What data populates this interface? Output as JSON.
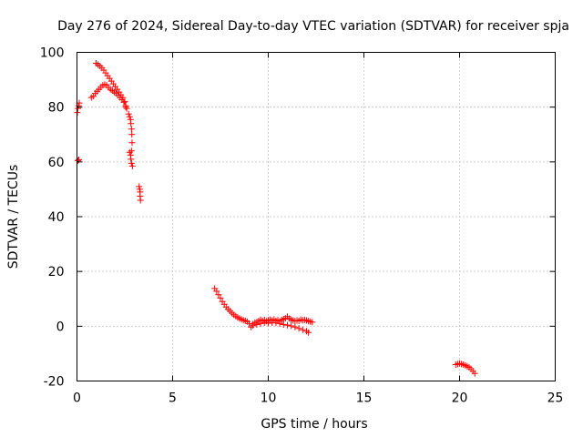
{
  "chart_data": {
    "type": "scatter",
    "title": "Day 276 of 2024, Sidereal Day-to-day VTEC variation (SDTVAR) for receiver spja",
    "xlabel": "GPS time / hours",
    "ylabel": "SDTVAR / TECUs",
    "xlim": [
      0,
      25
    ],
    "ylim": [
      -20,
      100
    ],
    "xticks": [
      0,
      5,
      10,
      15,
      20,
      25
    ],
    "yticks": [
      -20,
      0,
      20,
      40,
      60,
      80,
      100
    ],
    "grid": true,
    "legend": "none",
    "marker": "plus",
    "series": [
      {
        "color": "#ff0000",
        "points": [
          [
            0.02,
            78.0
          ],
          [
            0.05,
            79.5
          ],
          [
            0.08,
            80.5
          ],
          [
            0.12,
            81.5
          ],
          [
            0.05,
            60.5
          ],
          [
            0.1,
            60.8
          ],
          [
            0.75,
            83.5
          ],
          [
            0.85,
            84.0
          ],
          [
            0.95,
            85.0
          ],
          [
            1.05,
            85.8
          ],
          [
            1.15,
            86.5
          ],
          [
            1.25,
            87.3
          ],
          [
            1.35,
            88.0
          ],
          [
            1.45,
            88.3
          ],
          [
            1.55,
            88.0
          ],
          [
            1.65,
            87.2
          ],
          [
            1.75,
            86.5
          ],
          [
            1.85,
            86.0
          ],
          [
            1.95,
            85.5
          ],
          [
            2.05,
            85.0
          ],
          [
            2.15,
            84.3
          ],
          [
            2.25,
            83.5
          ],
          [
            2.35,
            82.7
          ],
          [
            2.45,
            81.8
          ],
          [
            2.55,
            80.5
          ],
          [
            2.6,
            79.5
          ],
          [
            1.0,
            96.0
          ],
          [
            1.1,
            95.5
          ],
          [
            1.2,
            95.0
          ],
          [
            1.3,
            94.3
          ],
          [
            1.4,
            93.5
          ],
          [
            1.5,
            92.5
          ],
          [
            1.6,
            91.5
          ],
          [
            1.7,
            90.5
          ],
          [
            1.8,
            89.5
          ],
          [
            1.9,
            88.5
          ],
          [
            2.0,
            87.5
          ],
          [
            2.1,
            86.5
          ],
          [
            2.2,
            85.5
          ],
          [
            2.3,
            84.5
          ],
          [
            2.4,
            83.5
          ],
          [
            2.5,
            82.0
          ],
          [
            2.55,
            80.0
          ],
          [
            2.7,
            77.5
          ],
          [
            2.75,
            76.5
          ],
          [
            2.8,
            75.5
          ],
          [
            2.82,
            74.0
          ],
          [
            2.85,
            72.0
          ],
          [
            2.87,
            70.0
          ],
          [
            2.88,
            67.0
          ],
          [
            2.85,
            64.0
          ],
          [
            2.8,
            62.5
          ],
          [
            2.82,
            61.0
          ],
          [
            2.85,
            59.5
          ],
          [
            2.9,
            58.5
          ],
          [
            2.75,
            63.5
          ],
          [
            3.25,
            51.0
          ],
          [
            3.28,
            50.0
          ],
          [
            3.3,
            49.0
          ],
          [
            3.3,
            47.5
          ],
          [
            3.32,
            46.0
          ],
          [
            7.2,
            13.8
          ],
          [
            7.3,
            12.8
          ],
          [
            7.4,
            11.5
          ],
          [
            7.5,
            10.3
          ],
          [
            7.6,
            9.0
          ],
          [
            7.7,
            8.0
          ],
          [
            7.8,
            7.0
          ],
          [
            7.9,
            6.2
          ],
          [
            8.0,
            5.5
          ],
          [
            8.1,
            4.8
          ],
          [
            8.2,
            4.2
          ],
          [
            8.3,
            3.7
          ],
          [
            8.4,
            3.2
          ],
          [
            8.5,
            2.8
          ],
          [
            8.6,
            2.5
          ],
          [
            8.7,
            2.2
          ],
          [
            8.8,
            2.0
          ],
          [
            8.9,
            1.7
          ],
          [
            9.0,
            1.0
          ],
          [
            9.1,
            -0.3
          ],
          [
            9.2,
            0.8
          ],
          [
            9.3,
            1.3
          ],
          [
            9.4,
            1.5
          ],
          [
            9.5,
            2.0
          ],
          [
            9.6,
            2.4
          ],
          [
            9.7,
            2.0
          ],
          [
            9.8,
            2.3
          ],
          [
            9.9,
            1.8
          ],
          [
            10.0,
            2.2
          ],
          [
            10.1,
            2.4
          ],
          [
            10.2,
            2.1
          ],
          [
            10.3,
            2.5
          ],
          [
            10.4,
            2.0
          ],
          [
            10.5,
            2.2
          ],
          [
            10.6,
            1.8
          ],
          [
            10.7,
            2.3
          ],
          [
            10.8,
            2.6
          ],
          [
            10.9,
            2.9
          ],
          [
            11.0,
            3.5
          ],
          [
            11.1,
            2.8
          ],
          [
            11.2,
            2.4
          ],
          [
            11.3,
            2.1
          ],
          [
            11.4,
            1.9
          ],
          [
            11.5,
            2.1
          ],
          [
            11.6,
            2.0
          ],
          [
            11.7,
            2.4
          ],
          [
            11.8,
            2.2
          ],
          [
            11.9,
            2.3
          ],
          [
            12.0,
            2.1
          ],
          [
            12.1,
            1.9
          ],
          [
            12.2,
            1.7
          ],
          [
            12.3,
            1.5
          ],
          [
            9.2,
            0.2
          ],
          [
            9.4,
            0.6
          ],
          [
            9.6,
            1.0
          ],
          [
            9.8,
            1.3
          ],
          [
            10.0,
            1.1
          ],
          [
            10.2,
            1.3
          ],
          [
            10.4,
            1.2
          ],
          [
            10.6,
            1.0
          ],
          [
            10.8,
            0.6
          ],
          [
            11.0,
            0.4
          ],
          [
            11.2,
            0.1
          ],
          [
            11.4,
            -0.3
          ],
          [
            11.6,
            -0.8
          ],
          [
            11.8,
            -1.3
          ],
          [
            12.0,
            -1.8
          ],
          [
            12.1,
            -2.3
          ],
          [
            19.8,
            -14.0
          ],
          [
            19.9,
            -13.8
          ],
          [
            20.0,
            -13.6
          ],
          [
            20.1,
            -13.8
          ],
          [
            20.2,
            -14.0
          ],
          [
            20.3,
            -14.3
          ],
          [
            20.4,
            -14.6
          ],
          [
            20.5,
            -15.0
          ],
          [
            20.6,
            -15.6
          ],
          [
            20.7,
            -16.4
          ],
          [
            20.8,
            -17.2
          ]
        ]
      }
    ]
  }
}
